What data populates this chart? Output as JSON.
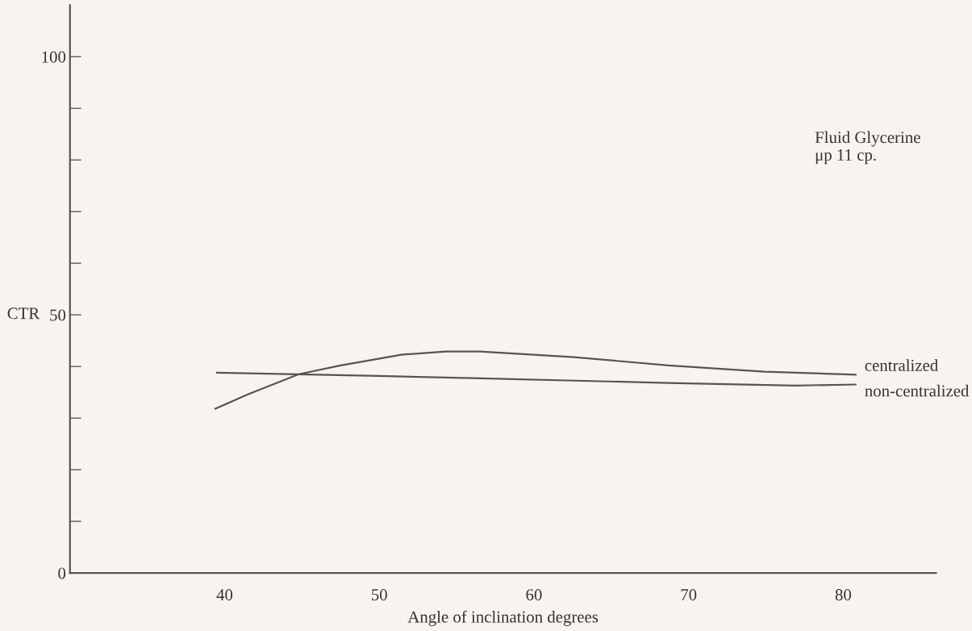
{
  "chart_data": {
    "type": "line",
    "xlabel": "Angle of inclination degrees",
    "ylabel": "CTR",
    "xlim": [
      30,
      86
    ],
    "ylim": [
      0,
      110
    ],
    "xticks": [
      40,
      50,
      60,
      70,
      80
    ],
    "yticks": [
      {
        "value": 0,
        "label": "0"
      },
      {
        "value": 10,
        "label": null
      },
      {
        "value": 20,
        "label": null
      },
      {
        "value": 30,
        "label": null
      },
      {
        "value": 40,
        "label": null
      },
      {
        "value": 50,
        "label": "50"
      },
      {
        "value": 60,
        "label": null
      },
      {
        "value": 70,
        "label": null
      },
      {
        "value": 80,
        "label": null
      },
      {
        "value": 90,
        "label": null
      },
      {
        "value": 100,
        "label": "100"
      }
    ],
    "series": [
      {
        "name": "centralized",
        "color": "#555555",
        "x": [
          39.4,
          41.5,
          44.8,
          47.5,
          51.5,
          54.3,
          56.5,
          62.6,
          68.7,
          74.9,
          80.8
        ],
        "values": [
          31.8,
          34.6,
          38.5,
          40.2,
          42.3,
          42.9,
          42.9,
          41.8,
          40.2,
          39.0,
          38.4
        ]
      },
      {
        "name": "non-centralized",
        "color": "#555555",
        "x": [
          39.5,
          49.3,
          56.6,
          68.7,
          76.9,
          80.8
        ],
        "values": [
          38.8,
          38.2,
          37.7,
          36.8,
          36.3,
          36.5
        ]
      }
    ],
    "annotations": [
      "Fluid Glycerine\nμp 11 cp."
    ],
    "grid": false,
    "legend": false,
    "marker": "none",
    "line_style": "solid"
  }
}
